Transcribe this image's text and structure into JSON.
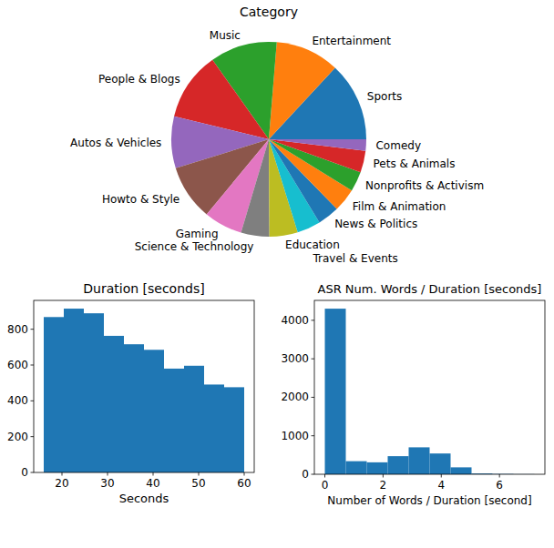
{
  "chart_data": [
    {
      "type": "pie",
      "title": "Category",
      "categories": [
        "Sports",
        "Entertainment",
        "Music",
        "People & Blogs",
        "Autos & Vehicles",
        "Howto & Style",
        "Gaming",
        "Science & Technology",
        "Education",
        "Travel & Events",
        "News & Politics",
        "Film & Animation",
        "Nonprofits & Activism",
        "Pets & Animals",
        "Comedy"
      ],
      "values": [
        13.1,
        10.6,
        11.1,
        11.4,
        8.6,
        9.2,
        6.4,
        4.7,
        4.7,
        3.9,
        3.6,
        3.9,
        3.3,
        3.6,
        1.9
      ],
      "colors": [
        "#1f77b4",
        "#ff7f0e",
        "#2ca02c",
        "#d62728",
        "#9467bd",
        "#8c564b",
        "#e377c2",
        "#7f7f7f",
        "#bcbd22",
        "#17becf",
        "#1f77b4",
        "#ff7f0e",
        "#2ca02c",
        "#d62728",
        "#9467bd"
      ]
    },
    {
      "type": "histogram",
      "title": "Duration [seconds]",
      "x_label": "Seconds",
      "bins": [
        16,
        20.4,
        24.8,
        29.2,
        33.6,
        38,
        42.4,
        46.8,
        51.2,
        55.6,
        60
      ],
      "values": [
        868,
        915,
        889,
        763,
        716,
        685,
        580,
        596,
        491,
        476
      ],
      "color": "#1f77b4",
      "xlim": [
        13.8,
        62.2
      ],
      "xticks": [
        20,
        30,
        40,
        50,
        60
      ],
      "ylim": [
        0,
        961
      ],
      "yticks": [
        0,
        200,
        400,
        600,
        800
      ]
    },
    {
      "type": "histogram",
      "title": "ASR Num. Words / Duration [seconds]",
      "x_label": "Number of Words  / Duration [second]",
      "bins": [
        0,
        0.72,
        1.44,
        2.16,
        2.88,
        3.6,
        4.32,
        5.04,
        5.76,
        6.48,
        7.2
      ],
      "values": [
        4302,
        340,
        310,
        470,
        700,
        540,
        180,
        20,
        8,
        3
      ],
      "color": "#1f77b4",
      "xlim": [
        -0.36,
        7.56
      ],
      "xticks": [
        0,
        2,
        4,
        6
      ],
      "ylim": [
        0,
        4517
      ],
      "yticks": [
        0,
        1000,
        2000,
        3000,
        4000
      ]
    }
  ]
}
